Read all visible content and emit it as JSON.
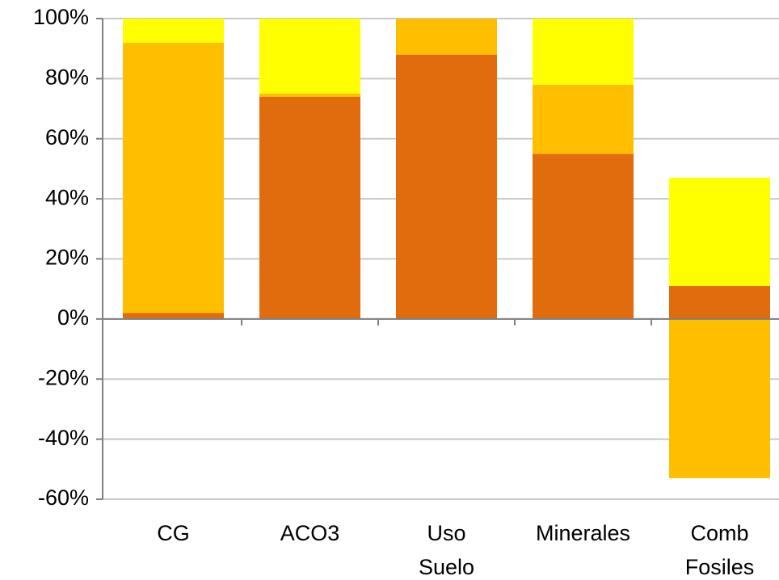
{
  "chart_data": {
    "type": "stacked_bar",
    "categories": [
      "CG",
      "ACO3",
      "Uso Suelo",
      "Minerales",
      "Comb Fosiles"
    ],
    "series": [
      {
        "color": "#e06c0e",
        "values": [
          2,
          74,
          88,
          55,
          11
        ]
      },
      {
        "color": "#ffbf00",
        "values": [
          90,
          1,
          12,
          23,
          -53
        ]
      },
      {
        "color": "#ffff00",
        "values": [
          8,
          25,
          0,
          22,
          36
        ]
      }
    ],
    "ylim": [
      -60,
      100
    ],
    "yticks": [
      {
        "value": -60,
        "label": "-60%"
      },
      {
        "value": -40,
        "label": "-40%"
      },
      {
        "value": -20,
        "label": "-20%"
      },
      {
        "value": 0,
        "label": "0%"
      },
      {
        "value": 20,
        "label": "20%"
      },
      {
        "value": 40,
        "label": "40%"
      },
      {
        "value": 60,
        "label": "60%"
      },
      {
        "value": 80,
        "label": "80%"
      },
      {
        "value": 100,
        "label": "100%"
      }
    ],
    "grid": true
  }
}
